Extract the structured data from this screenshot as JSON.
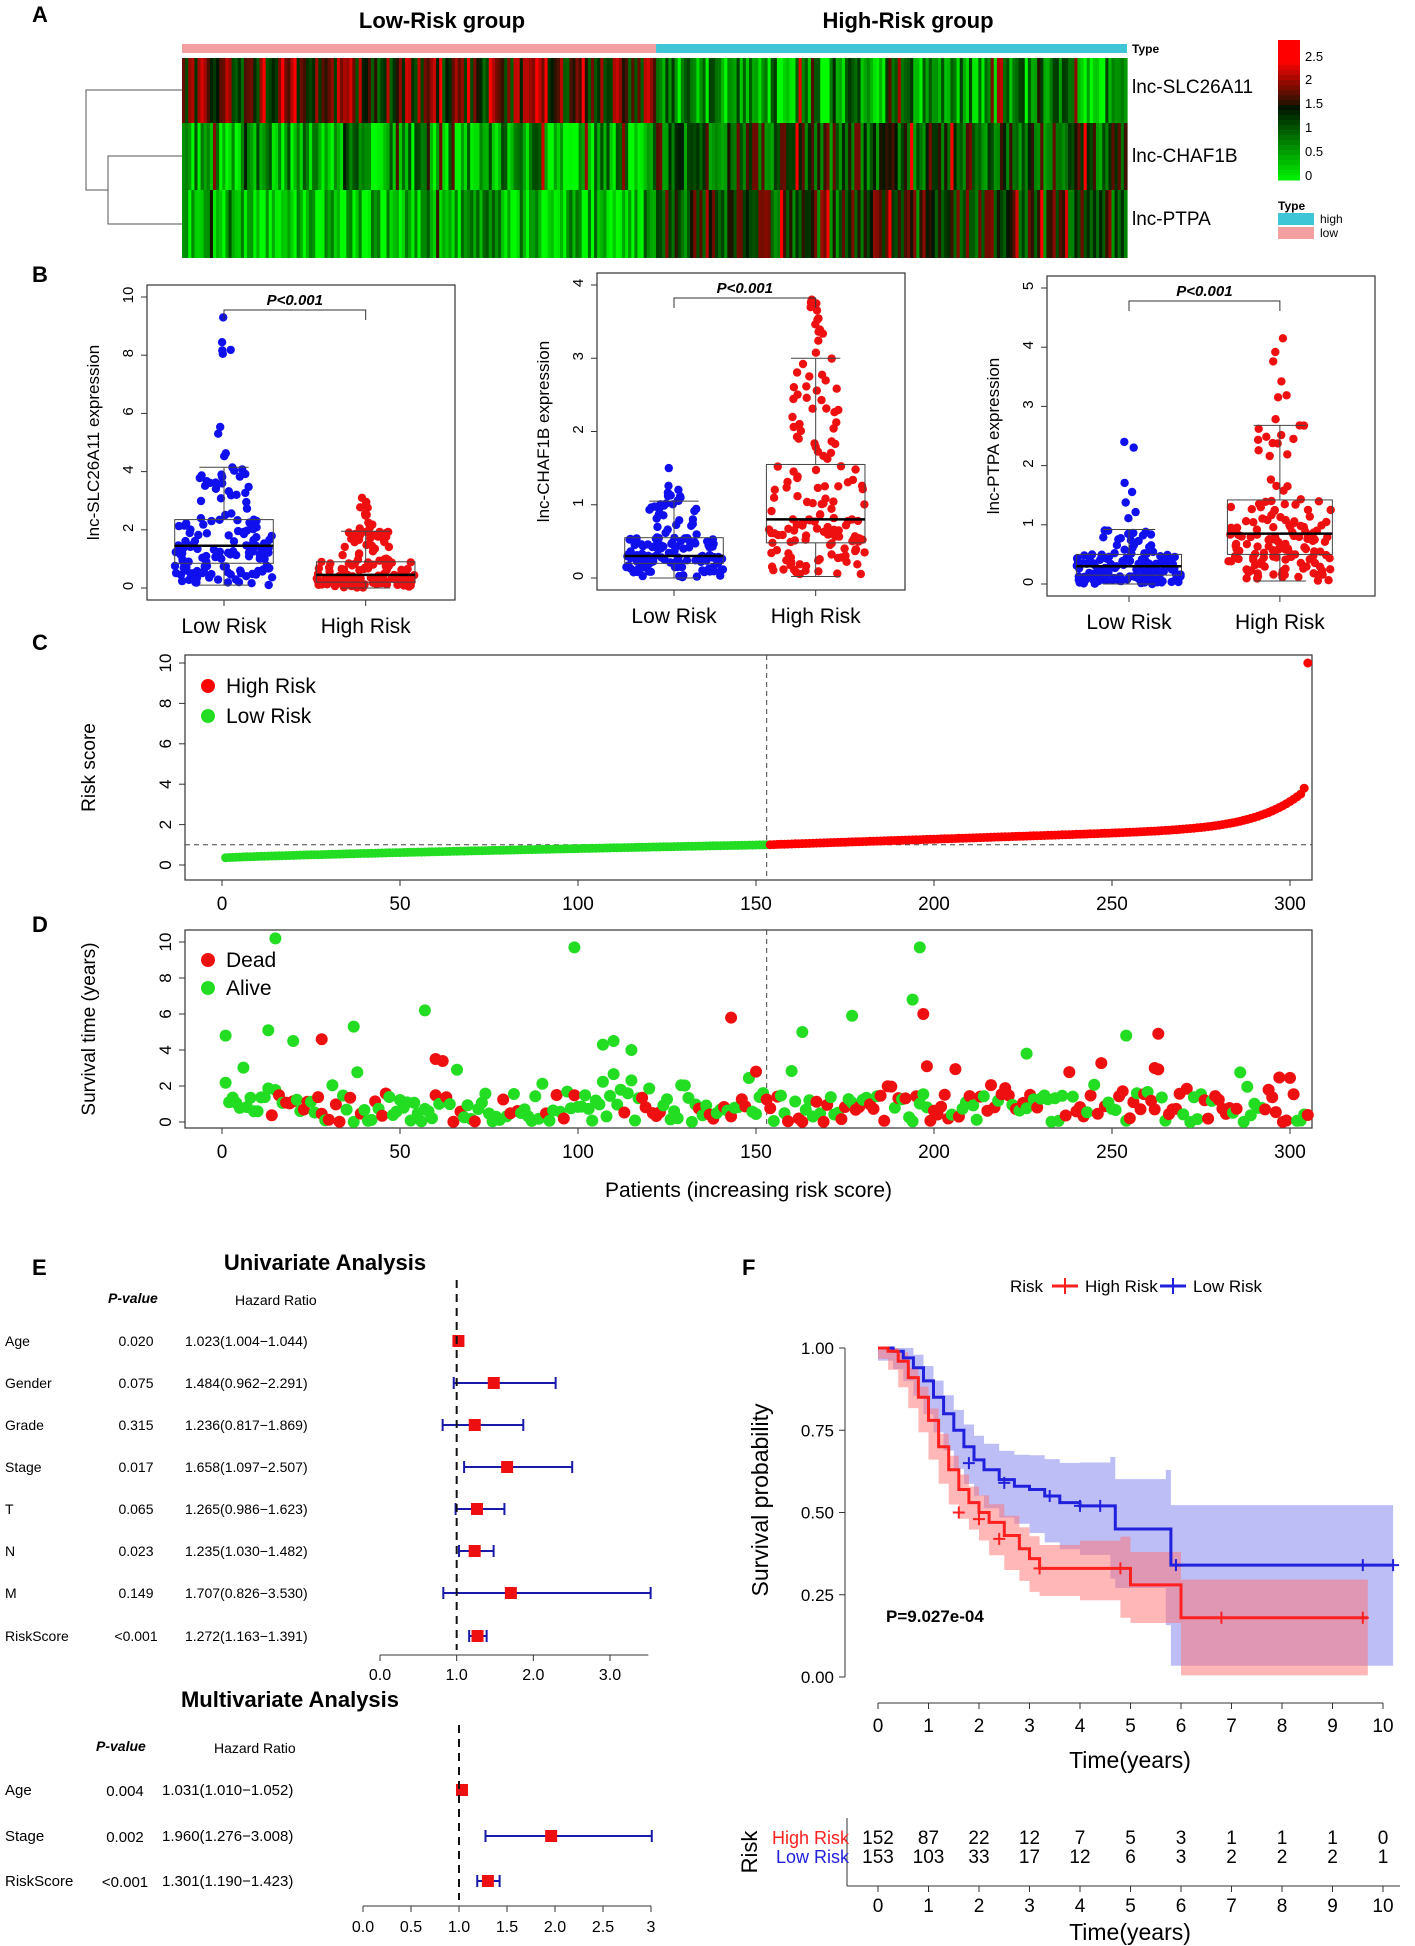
{
  "panels": {
    "A": {
      "label": "A",
      "group_low": "Low-Risk group",
      "group_high": "High-Risk group",
      "type_label": "Type",
      "genes": [
        "lnc-SLC26A11",
        "lnc-CHAF1B",
        "lnc-PTPA"
      ],
      "colorbar_ticks": [
        "2.5",
        "2",
        "1.5",
        "1",
        "0.5",
        "0"
      ],
      "legend_title": "Type",
      "legend_items": [
        "high",
        "low"
      ],
      "colors": {
        "low_group": "#F4A0A0",
        "high_group": "#3EC6D6",
        "green": "#00E000",
        "red": "#FF0000"
      }
    },
    "B": {
      "label": "B",
      "pvalue": "P<0.001",
      "xticks": [
        "Low Risk",
        "High Risk"
      ],
      "plots": [
        {
          "ylabel": "lnc-SLC26A11 expression",
          "ymax": 10,
          "yticks": [
            "0",
            "2",
            "4",
            "6",
            "8",
            "10"
          ],
          "low": {
            "q1": 0.85,
            "median": 1.45,
            "q3": 2.35,
            "wlo": 0.1,
            "whi": 4.15,
            "max": 9.3
          },
          "high": {
            "q1": 0.2,
            "median": 0.45,
            "q3": 0.9,
            "wlo": 0.0,
            "whi": 1.95,
            "max": 3.1
          }
        },
        {
          "ylabel": "lnc-CHAF1B expression",
          "ymax": 4,
          "yticks": [
            "0",
            "1",
            "2",
            "3",
            "4"
          ],
          "low": {
            "q1": 0.2,
            "median": 0.3,
            "q3": 0.55,
            "wlo": 0.0,
            "whi": 1.05,
            "max": 1.5
          },
          "high": {
            "q1": 0.48,
            "median": 0.8,
            "q3": 1.55,
            "wlo": 0.02,
            "whi": 3.0,
            "max": 3.8
          }
        },
        {
          "ylabel": "lnc-PTPA expression",
          "ymax": 5,
          "yticks": [
            "0",
            "1",
            "2",
            "3",
            "4",
            "5"
          ],
          "low": {
            "q1": 0.15,
            "median": 0.3,
            "q3": 0.5,
            "wlo": 0.0,
            "whi": 0.92,
            "max": 2.4
          },
          "high": {
            "q1": 0.5,
            "median": 0.85,
            "q3": 1.42,
            "wlo": 0.05,
            "whi": 2.68,
            "max": 4.15
          }
        }
      ]
    },
    "C": {
      "label": "C",
      "ylabel": "Risk score",
      "legend": [
        "High Risk",
        "Low Risk"
      ],
      "xticks": [
        "0",
        "50",
        "100",
        "150",
        "200",
        "250",
        "300"
      ],
      "yticks": [
        "0",
        "2",
        "4",
        "6",
        "8",
        "10"
      ],
      "cutoff_patient": 153,
      "cutoff_score": 1.0,
      "n_patients": 305,
      "max_score": 10,
      "colors": {
        "high": "#FF0000",
        "low": "#22DD22"
      }
    },
    "D": {
      "label": "D",
      "ylabel": "Survival time (years)",
      "xlabel": "Patients (increasing risk score)",
      "legend": [
        "Dead",
        "Alive"
      ],
      "xticks": [
        "0",
        "50",
        "100",
        "150",
        "200",
        "250",
        "300"
      ],
      "yticks": [
        "0",
        "2",
        "4",
        "6",
        "8",
        "10"
      ],
      "cutoff_patient": 153,
      "outliers": [
        {
          "x": 15,
          "y": 10.2,
          "s": "alive"
        },
        {
          "x": 99,
          "y": 9.7,
          "s": "alive"
        },
        {
          "x": 196,
          "y": 9.7,
          "s": "alive"
        },
        {
          "x": 194,
          "y": 6.8,
          "s": "alive"
        },
        {
          "x": 57,
          "y": 6.2,
          "s": "alive"
        },
        {
          "x": 197,
          "y": 6.0,
          "s": "dead"
        },
        {
          "x": 143,
          "y": 5.8,
          "s": "dead"
        },
        {
          "x": 177,
          "y": 5.9,
          "s": "alive"
        },
        {
          "x": 37,
          "y": 5.3,
          "s": "alive"
        },
        {
          "x": 163,
          "y": 5.0,
          "s": "alive"
        },
        {
          "x": 13,
          "y": 5.1,
          "s": "alive"
        },
        {
          "x": 1,
          "y": 4.8,
          "s": "alive"
        },
        {
          "x": 28,
          "y": 4.6,
          "s": "dead"
        },
        {
          "x": 20,
          "y": 4.5,
          "s": "alive"
        },
        {
          "x": 263,
          "y": 4.9,
          "s": "dead"
        },
        {
          "x": 254,
          "y": 4.8,
          "s": "alive"
        },
        {
          "x": 110,
          "y": 4.5,
          "s": "alive"
        },
        {
          "x": 107,
          "y": 4.3,
          "s": "alive"
        },
        {
          "x": 115,
          "y": 4.0,
          "s": "alive"
        },
        {
          "x": 60,
          "y": 3.5,
          "s": "dead"
        },
        {
          "x": 226,
          "y": 3.8,
          "s": "alive"
        },
        {
          "x": 150,
          "y": 2.8,
          "s": "dead"
        },
        {
          "x": 198,
          "y": 3.1,
          "s": "dead"
        },
        {
          "x": 262,
          "y": 3.0,
          "s": "dead"
        }
      ]
    },
    "E": {
      "label": "E",
      "uni_title": "Univariate Analysis",
      "multi_title": "Multivariate Analysis",
      "pvalue_header": "P-value",
      "hr_header_uni": "Hazard  Ratio",
      "hr_header_multi": "Hazard Ratio",
      "uni_xticks": [
        "0.0",
        "1.0",
        "2.0",
        "3.0"
      ],
      "multi_xticks": [
        "0.0",
        "0.5",
        "1.0",
        "1.5",
        "2.0",
        "2.5",
        "3"
      ],
      "univariate": [
        {
          "name": "Age",
          "p": "0.020",
          "hr_text": "1.023(1.004−1.044)",
          "hr": 1.023,
          "lo": 1.004,
          "hi": 1.044
        },
        {
          "name": "Gender",
          "p": "0.075",
          "hr_text": "1.484(0.962−2.291)",
          "hr": 1.484,
          "lo": 0.962,
          "hi": 2.291
        },
        {
          "name": "Grade",
          "p": "0.315",
          "hr_text": "1.236(0.817−1.869)",
          "hr": 1.236,
          "lo": 0.817,
          "hi": 1.869
        },
        {
          "name": "Stage",
          "p": "0.017",
          "hr_text": "1.658(1.097−2.507)",
          "hr": 1.658,
          "lo": 1.097,
          "hi": 2.507
        },
        {
          "name": "T",
          "p": "0.065",
          "hr_text": "1.265(0.986−1.623)",
          "hr": 1.265,
          "lo": 0.986,
          "hi": 1.623
        },
        {
          "name": "N",
          "p": "0.023",
          "hr_text": "1.235(1.030−1.482)",
          "hr": 1.235,
          "lo": 1.03,
          "hi": 1.482
        },
        {
          "name": "M",
          "p": "0.149",
          "hr_text": "1.707(0.826−3.530)",
          "hr": 1.707,
          "lo": 0.826,
          "hi": 3.53
        },
        {
          "name": "RiskScore",
          "p": "<0.001",
          "hr_text": "1.272(1.163−1.391)",
          "hr": 1.272,
          "lo": 1.163,
          "hi": 1.391
        }
      ],
      "multivariate": [
        {
          "name": "Age",
          "p": "0.004",
          "hr_text": "1.031(1.010−1.052)",
          "hr": 1.031,
          "lo": 1.01,
          "hi": 1.052
        },
        {
          "name": "Stage",
          "p": "0.002",
          "hr_text": "1.960(1.276−3.008)",
          "hr": 1.96,
          "lo": 1.276,
          "hi": 3.008
        },
        {
          "name": "RiskScore",
          "p": "<0.001",
          "hr_text": "1.301(1.190−1.423)",
          "hr": 1.301,
          "lo": 1.19,
          "hi": 1.423
        }
      ]
    },
    "F": {
      "label": "F",
      "legend_title": "Risk",
      "legend": [
        "High Risk",
        "Low Risk"
      ],
      "ylabel": "Survival probability",
      "xlabel": "Time(years)",
      "pvalue": "P=9.027e-04",
      "yticks": [
        "0.00",
        "0.25",
        "0.50",
        "0.75",
        "1.00"
      ],
      "xticks": [
        "0",
        "1",
        "2",
        "3",
        "4",
        "5",
        "6",
        "7",
        "8",
        "9",
        "10"
      ],
      "risk_table_ylabel": "Risk",
      "risk_table_xlabel": "Time(years)",
      "colors": {
        "high": "#FF2020",
        "low": "#2020DD"
      },
      "curves": {
        "high": [
          [
            0,
            1.0
          ],
          [
            0.2,
            0.99
          ],
          [
            0.4,
            0.96
          ],
          [
            0.6,
            0.91
          ],
          [
            0.8,
            0.85
          ],
          [
            1.0,
            0.78
          ],
          [
            1.2,
            0.7
          ],
          [
            1.4,
            0.63
          ],
          [
            1.6,
            0.57
          ],
          [
            1.8,
            0.53
          ],
          [
            2.0,
            0.5
          ],
          [
            2.2,
            0.47
          ],
          [
            2.5,
            0.43
          ],
          [
            2.8,
            0.39
          ],
          [
            3.0,
            0.36
          ],
          [
            3.2,
            0.33
          ],
          [
            4.0,
            0.33
          ],
          [
            4.8,
            0.33
          ],
          [
            5.0,
            0.28
          ],
          [
            6.0,
            0.28
          ],
          [
            6.0,
            0.18
          ],
          [
            9.7,
            0.18
          ]
        ],
        "low": [
          [
            0,
            1.0
          ],
          [
            0.3,
            0.99
          ],
          [
            0.5,
            0.97
          ],
          [
            0.7,
            0.94
          ],
          [
            0.9,
            0.9
          ],
          [
            1.1,
            0.85
          ],
          [
            1.3,
            0.8
          ],
          [
            1.5,
            0.75
          ],
          [
            1.7,
            0.7
          ],
          [
            1.9,
            0.66
          ],
          [
            2.1,
            0.63
          ],
          [
            2.4,
            0.6
          ],
          [
            2.7,
            0.58
          ],
          [
            3.0,
            0.57
          ],
          [
            3.3,
            0.55
          ],
          [
            3.6,
            0.53
          ],
          [
            4.0,
            0.52
          ],
          [
            4.6,
            0.52
          ],
          [
            4.7,
            0.45
          ],
          [
            5.7,
            0.45
          ],
          [
            5.8,
            0.34
          ],
          [
            10.2,
            0.34
          ]
        ]
      },
      "risk_table": {
        "times": [
          "0",
          "1",
          "2",
          "3",
          "4",
          "5",
          "6",
          "7",
          "8",
          "9",
          "10"
        ],
        "high": [
          "152",
          "87",
          "22",
          "12",
          "7",
          "5",
          "3",
          "1",
          "1",
          "1",
          "0"
        ],
        "low": [
          "153",
          "103",
          "33",
          "17",
          "12",
          "6",
          "3",
          "2",
          "2",
          "2",
          "1"
        ]
      }
    }
  }
}
